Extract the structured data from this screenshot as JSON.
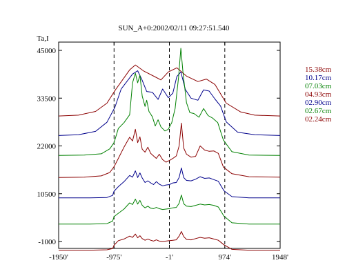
{
  "chart_data": {
    "type": "line",
    "title": "SUN_A+0:2002/02/11 09:27:51.540",
    "ylabel": "Ta,I",
    "xlabel": "",
    "xlim": [
      -1950,
      1948
    ],
    "ylim": [
      -1000,
      45000
    ],
    "x_ticks": [
      -1950,
      -975,
      -1,
      974,
      1948
    ],
    "x_tick_labels": [
      "-1950'",
      "-975'",
      "-1'",
      "974'",
      "1948'"
    ],
    "y_ticks": [
      -1000,
      10500,
      22000,
      33500,
      45000
    ],
    "y_tick_labels": [
      "-1000",
      "10500",
      "22000",
      "33500",
      "45000"
    ],
    "vlines": [
      -975,
      -1,
      974
    ],
    "grid": false,
    "legend_position": "right",
    "series": [
      {
        "name": "15.38cm",
        "color": "#8b0000",
        "points": [
          [
            -1950,
            29200
          ],
          [
            -1600,
            29400
          ],
          [
            -1300,
            30300
          ],
          [
            -1100,
            32300
          ],
          [
            -950,
            35500
          ],
          [
            -700,
            40300
          ],
          [
            -600,
            41500
          ],
          [
            -450,
            40000
          ],
          [
            -250,
            38600
          ],
          [
            -150,
            37900
          ],
          [
            -20,
            39800
          ],
          [
            130,
            40800
          ],
          [
            300,
            38800
          ],
          [
            500,
            37500
          ],
          [
            650,
            38100
          ],
          [
            800,
            36800
          ],
          [
            1000,
            32300
          ],
          [
            1250,
            30200
          ],
          [
            1500,
            29400
          ],
          [
            1948,
            29200
          ]
        ]
      },
      {
        "name": "10.17cm",
        "color": "#00008b",
        "points": [
          [
            -1950,
            24500
          ],
          [
            -1600,
            24700
          ],
          [
            -1300,
            25500
          ],
          [
            -1100,
            27700
          ],
          [
            -960,
            31300
          ],
          [
            -850,
            35700
          ],
          [
            -650,
            39300
          ],
          [
            -560,
            40100
          ],
          [
            -480,
            37800
          ],
          [
            -400,
            35100
          ],
          [
            -300,
            34900
          ],
          [
            -200,
            33200
          ],
          [
            -120,
            35700
          ],
          [
            -20,
            33600
          ],
          [
            60,
            34700
          ],
          [
            130,
            38700
          ],
          [
            200,
            39800
          ],
          [
            280,
            35600
          ],
          [
            380,
            33500
          ],
          [
            500,
            33000
          ],
          [
            600,
            35500
          ],
          [
            700,
            35200
          ],
          [
            800,
            33300
          ],
          [
            900,
            31600
          ],
          [
            1000,
            27800
          ],
          [
            1200,
            25300
          ],
          [
            1500,
            24700
          ],
          [
            1948,
            24500
          ]
        ]
      },
      {
        "name": "07.03cm",
        "color": "#008000",
        "points": [
          [
            -1950,
            19700
          ],
          [
            -1500,
            19800
          ],
          [
            -1200,
            20100
          ],
          [
            -1050,
            21300
          ],
          [
            -975,
            22800
          ],
          [
            -900,
            26200
          ],
          [
            -800,
            27600
          ],
          [
            -700,
            29500
          ],
          [
            -650,
            37200
          ],
          [
            -600,
            39500
          ],
          [
            -560,
            37200
          ],
          [
            -520,
            39000
          ],
          [
            -480,
            34000
          ],
          [
            -430,
            31500
          ],
          [
            -400,
            33000
          ],
          [
            -360,
            30300
          ],
          [
            -300,
            29000
          ],
          [
            -250,
            26800
          ],
          [
            -200,
            28300
          ],
          [
            -150,
            26600
          ],
          [
            -80,
            25600
          ],
          [
            -20,
            26000
          ],
          [
            40,
            27600
          ],
          [
            100,
            31000
          ],
          [
            160,
            38500
          ],
          [
            200,
            45500
          ],
          [
            240,
            39500
          ],
          [
            300,
            32400
          ],
          [
            360,
            30000
          ],
          [
            430,
            29800
          ],
          [
            520,
            28900
          ],
          [
            600,
            31000
          ],
          [
            680,
            29300
          ],
          [
            760,
            28700
          ],
          [
            850,
            27600
          ],
          [
            950,
            23400
          ],
          [
            1100,
            20600
          ],
          [
            1400,
            19800
          ],
          [
            1948,
            19700
          ]
        ]
      },
      {
        "name": "04.93cm",
        "color": "#8b0000",
        "points": [
          [
            -1950,
            14400
          ],
          [
            -1500,
            14500
          ],
          [
            -1200,
            14800
          ],
          [
            -1050,
            15600
          ],
          [
            -975,
            17000
          ],
          [
            -900,
            19000
          ],
          [
            -800,
            21700
          ],
          [
            -700,
            24100
          ],
          [
            -650,
            23200
          ],
          [
            -600,
            26000
          ],
          [
            -560,
            22800
          ],
          [
            -520,
            24200
          ],
          [
            -480,
            21200
          ],
          [
            -430,
            20500
          ],
          [
            -380,
            21700
          ],
          [
            -330,
            20200
          ],
          [
            -280,
            19600
          ],
          [
            -230,
            19000
          ],
          [
            -180,
            20000
          ],
          [
            -120,
            18700
          ],
          [
            -60,
            18100
          ],
          [
            0,
            18500
          ],
          [
            60,
            19000
          ],
          [
            120,
            19600
          ],
          [
            170,
            22000
          ],
          [
            210,
            27500
          ],
          [
            250,
            21500
          ],
          [
            300,
            20000
          ],
          [
            380,
            19300
          ],
          [
            460,
            19500
          ],
          [
            540,
            22000
          ],
          [
            620,
            21000
          ],
          [
            700,
            20700
          ],
          [
            780,
            20800
          ],
          [
            860,
            20200
          ],
          [
            950,
            16900
          ],
          [
            1100,
            15300
          ],
          [
            1400,
            14600
          ],
          [
            1948,
            14500
          ]
        ]
      },
      {
        "name": "02.90cm",
        "color": "#00008b",
        "points": [
          [
            -1950,
            9500
          ],
          [
            -1400,
            9500
          ],
          [
            -1100,
            9600
          ],
          [
            -1000,
            10100
          ],
          [
            -975,
            11100
          ],
          [
            -900,
            12200
          ],
          [
            -800,
            13400
          ],
          [
            -700,
            14900
          ],
          [
            -650,
            14500
          ],
          [
            -600,
            16000
          ],
          [
            -560,
            14400
          ],
          [
            -520,
            15500
          ],
          [
            -480,
            14300
          ],
          [
            -430,
            13200
          ],
          [
            -380,
            13600
          ],
          [
            -330,
            13100
          ],
          [
            -280,
            12700
          ],
          [
            -230,
            13400
          ],
          [
            -180,
            12800
          ],
          [
            -120,
            12400
          ],
          [
            -60,
            12600
          ],
          [
            0,
            12700
          ],
          [
            60,
            13100
          ],
          [
            120,
            13200
          ],
          [
            170,
            14400
          ],
          [
            210,
            16700
          ],
          [
            250,
            14400
          ],
          [
            300,
            13700
          ],
          [
            380,
            13600
          ],
          [
            460,
            14000
          ],
          [
            540,
            14600
          ],
          [
            620,
            14200
          ],
          [
            700,
            14300
          ],
          [
            780,
            13900
          ],
          [
            860,
            13500
          ],
          [
            960,
            11200
          ],
          [
            1100,
            9800
          ],
          [
            1400,
            9500
          ],
          [
            1948,
            9500
          ]
        ]
      },
      {
        "name": "02.67cm",
        "color": "#008000",
        "points": [
          [
            -1950,
            3200
          ],
          [
            -1400,
            3200
          ],
          [
            -1100,
            3300
          ],
          [
            -1000,
            3900
          ],
          [
            -975,
            5000
          ],
          [
            -900,
            5800
          ],
          [
            -800,
            6800
          ],
          [
            -700,
            8300
          ],
          [
            -650,
            7900
          ],
          [
            -600,
            9200
          ],
          [
            -560,
            8000
          ],
          [
            -520,
            8900
          ],
          [
            -480,
            7700
          ],
          [
            -430,
            7100
          ],
          [
            -380,
            7500
          ],
          [
            -330,
            7000
          ],
          [
            -280,
            6900
          ],
          [
            -230,
            7200
          ],
          [
            -180,
            6900
          ],
          [
            -120,
            6700
          ],
          [
            -60,
            6800
          ],
          [
            0,
            6900
          ],
          [
            60,
            7100
          ],
          [
            120,
            7200
          ],
          [
            170,
            8200
          ],
          [
            210,
            10200
          ],
          [
            250,
            8100
          ],
          [
            300,
            7500
          ],
          [
            380,
            7400
          ],
          [
            460,
            7700
          ],
          [
            540,
            8000
          ],
          [
            620,
            7800
          ],
          [
            700,
            7900
          ],
          [
            780,
            7700
          ],
          [
            860,
            7300
          ],
          [
            960,
            5100
          ],
          [
            1100,
            3500
          ],
          [
            1400,
            3200
          ],
          [
            1948,
            3200
          ]
        ]
      },
      {
        "name": "02.24cm",
        "color": "#8b0000",
        "points": [
          [
            -1950,
            -3100
          ],
          [
            -1400,
            -3100
          ],
          [
            -1100,
            -3000
          ],
          [
            -1000,
            -2700
          ],
          [
            -975,
            -1900
          ],
          [
            -900,
            -800
          ],
          [
            -800,
            -400
          ],
          [
            -700,
            300
          ],
          [
            -650,
            0
          ],
          [
            -600,
            800
          ],
          [
            -560,
            -100
          ],
          [
            -520,
            400
          ],
          [
            -480,
            -300
          ],
          [
            -430,
            -700
          ],
          [
            -380,
            -400
          ],
          [
            -330,
            -700
          ],
          [
            -280,
            -900
          ],
          [
            -230,
            -600
          ],
          [
            -180,
            -900
          ],
          [
            -120,
            -1000
          ],
          [
            -60,
            -900
          ],
          [
            0,
            -800
          ],
          [
            60,
            -700
          ],
          [
            120,
            -600
          ],
          [
            170,
            300
          ],
          [
            210,
            1400
          ],
          [
            250,
            200
          ],
          [
            300,
            -500
          ],
          [
            380,
            -600
          ],
          [
            460,
            -300
          ],
          [
            540,
            0
          ],
          [
            620,
            -200
          ],
          [
            700,
            -100
          ],
          [
            780,
            -400
          ],
          [
            860,
            -700
          ],
          [
            960,
            -1800
          ],
          [
            1100,
            -2900
          ],
          [
            1400,
            -3100
          ],
          [
            1948,
            -3100
          ]
        ]
      }
    ]
  }
}
